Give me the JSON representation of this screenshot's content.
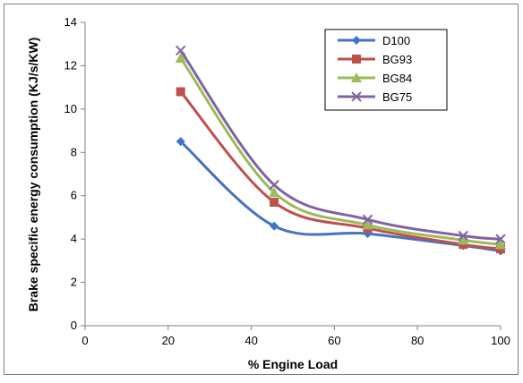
{
  "chart_data": {
    "type": "line",
    "title": "",
    "xlabel": "% Engine Load",
    "ylabel": "Brake specific energy consumption (KJ/s/KW)",
    "xlim": [
      0,
      100
    ],
    "ylim": [
      0,
      14
    ],
    "xticks": [
      0,
      20,
      40,
      60,
      80,
      100
    ],
    "yticks": [
      0,
      2,
      4,
      6,
      8,
      10,
      12,
      14
    ],
    "grid": false,
    "legend_position": "top-right",
    "x": [
      23,
      45.5,
      68,
      91,
      100
    ],
    "series": [
      {
        "name": "D100",
        "color": "#4472c4",
        "marker": "diamond",
        "values": [
          8.5,
          4.6,
          4.25,
          3.7,
          3.45
        ]
      },
      {
        "name": "BG93",
        "color": "#c0504d",
        "marker": "square",
        "values": [
          10.8,
          5.7,
          4.5,
          3.75,
          3.55
        ]
      },
      {
        "name": "BG84",
        "color": "#9bbb59",
        "marker": "triangle",
        "values": [
          12.35,
          6.15,
          4.65,
          3.95,
          3.75
        ]
      },
      {
        "name": "BG75",
        "color": "#8064a2",
        "marker": "x",
        "values": [
          12.7,
          6.5,
          4.9,
          4.15,
          4.0
        ]
      }
    ]
  }
}
